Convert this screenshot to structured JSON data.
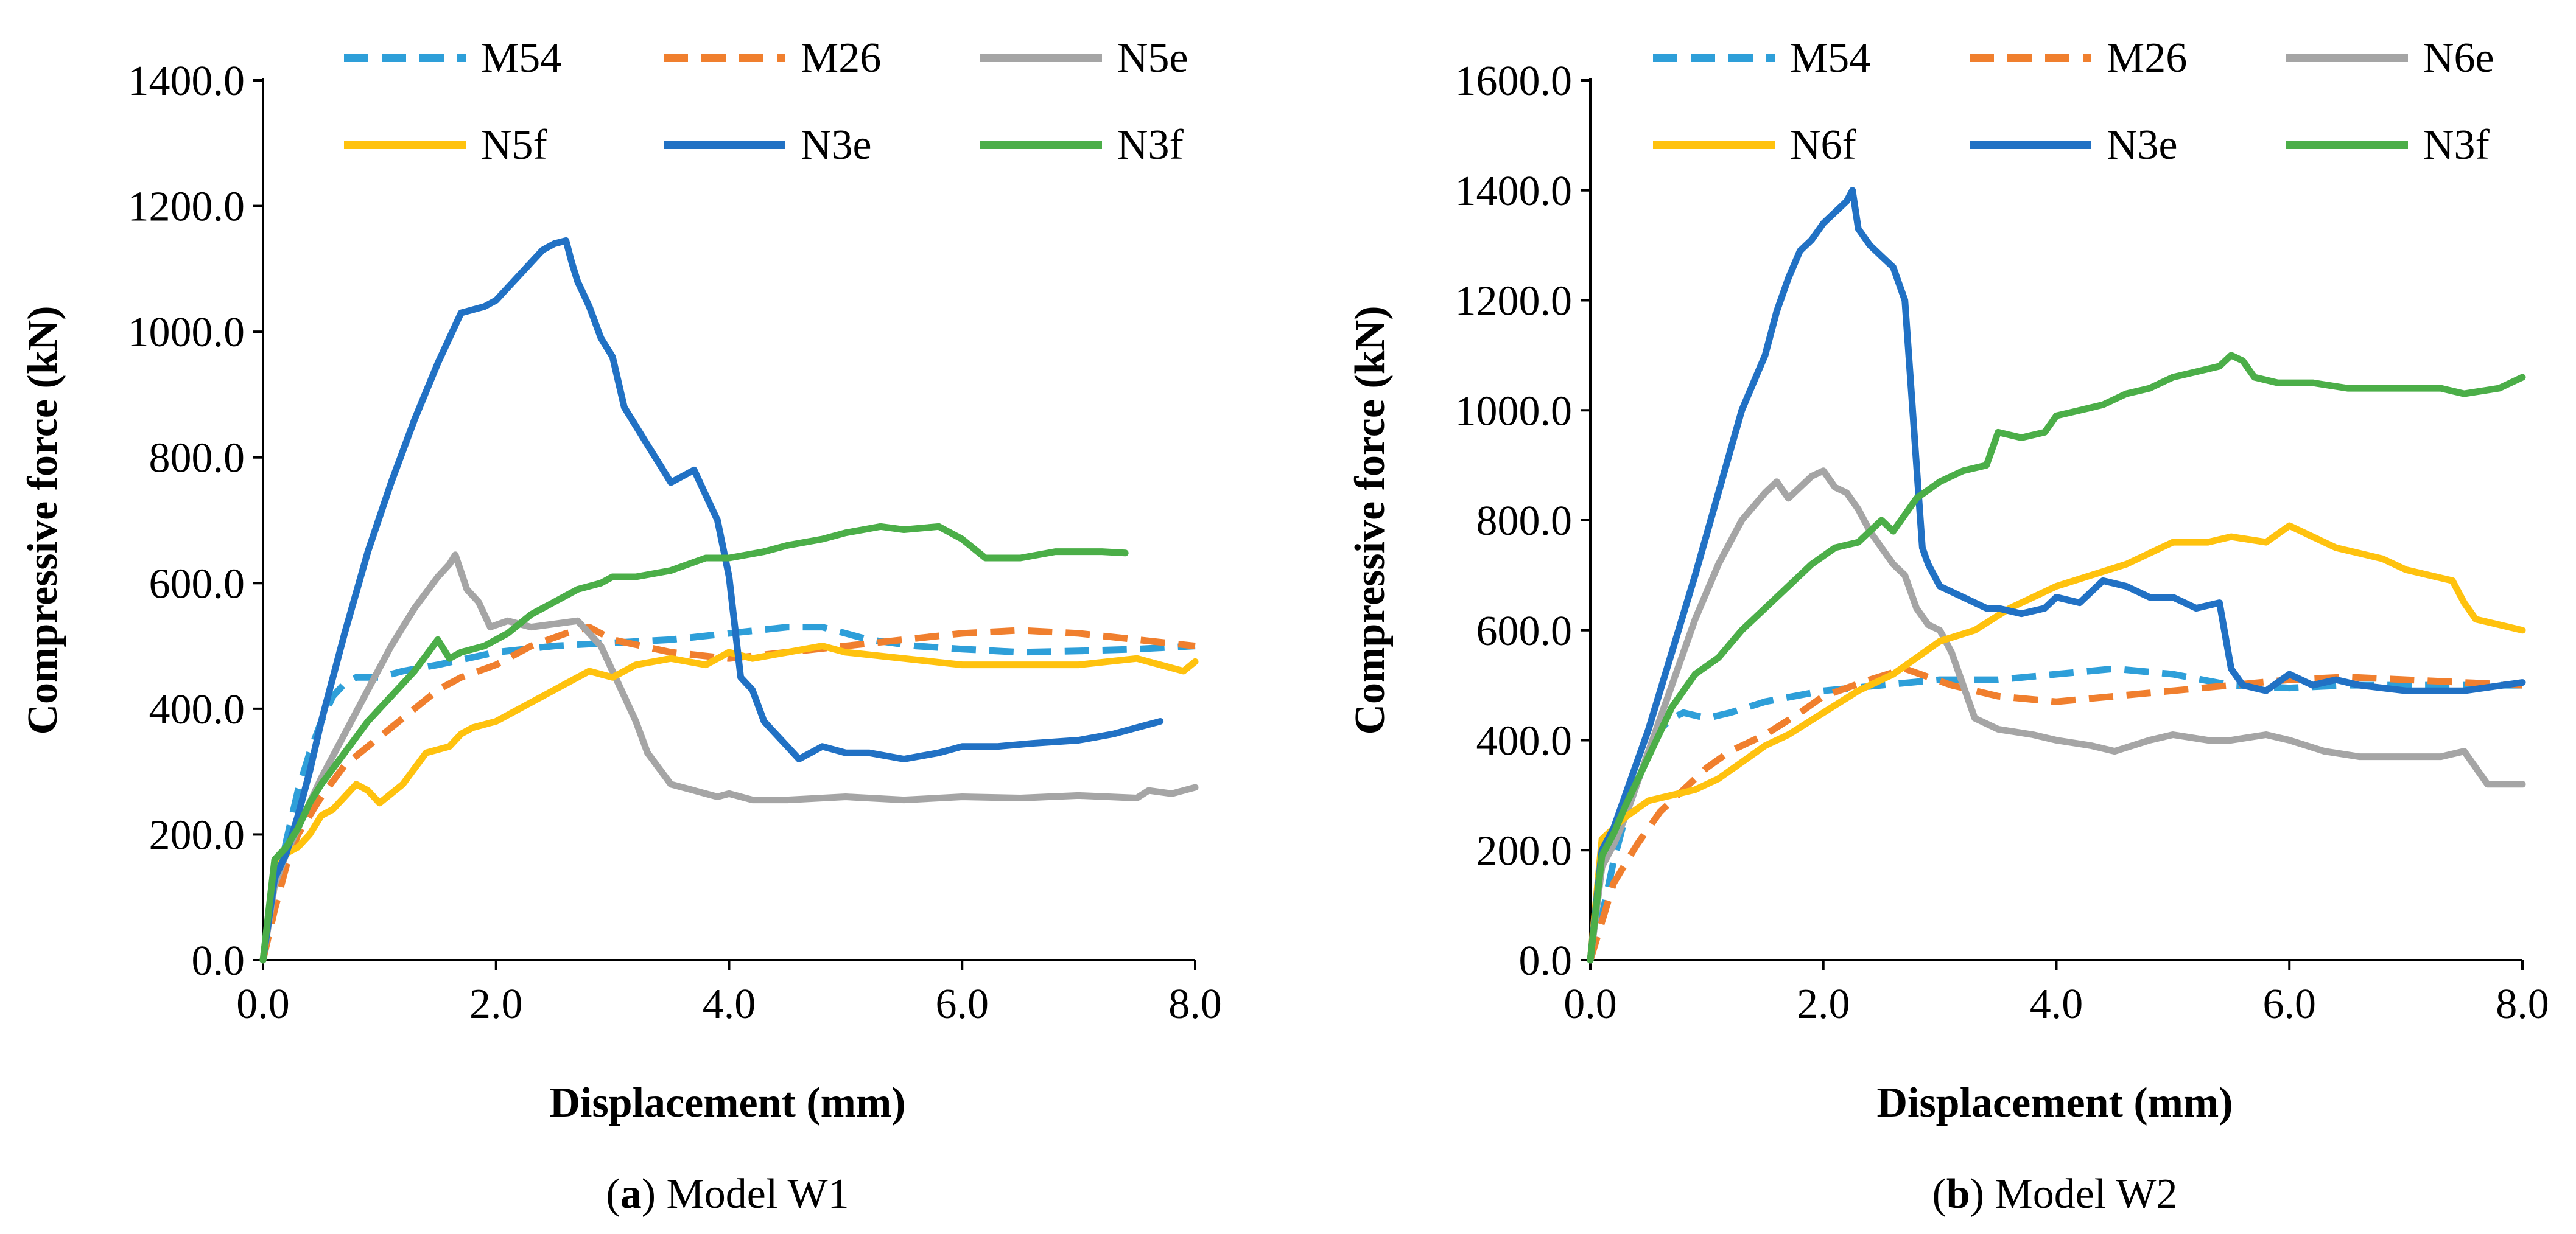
{
  "figure": {
    "panels": [
      {
        "caption": {
          "letter": "a",
          "text": ") Model W1"
        }
      },
      {
        "caption": {
          "letter": "b",
          "text": ") Model W2"
        }
      }
    ]
  },
  "colors": {
    "M54": "#2E9FD9",
    "M26": "#F07F2E",
    "N5e": "#A5A5A5",
    "N6e": "#A5A5A5",
    "N5f": "#FFC20E",
    "N6f": "#FFC20E",
    "N3e": "#2171C4",
    "N3f": "#4BAE48"
  },
  "chart_data": [
    {
      "type": "line",
      "title": "Model W1",
      "xlabel": "Displacement (mm)",
      "ylabel": "Compressive force (kN)",
      "xlim": [
        0,
        8
      ],
      "ylim": [
        0,
        1400
      ],
      "xticks": [
        "0.0",
        "2.0",
        "4.0",
        "6.0",
        "8.0"
      ],
      "yticks": [
        "0.0",
        "200.0",
        "400.0",
        "600.0",
        "800.0",
        "1000.0",
        "1200.0",
        "1400.0"
      ],
      "legend_position": "top",
      "series": [
        {
          "name": "M54",
          "dashed": true,
          "color": "#2E9FD9",
          "x": [
            0,
            0.1,
            0.2,
            0.3,
            0.4,
            0.5,
            0.6,
            0.7,
            0.8,
            1.0,
            1.2,
            1.5,
            2.0,
            2.5,
            3.0,
            3.5,
            4.0,
            4.5,
            4.8,
            5.2,
            5.6,
            6.0,
            6.5,
            7.0,
            7.5,
            8.0
          ],
          "y": [
            0,
            100,
            190,
            270,
            330,
            380,
            420,
            440,
            450,
            450,
            460,
            470,
            490,
            500,
            505,
            510,
            520,
            530,
            530,
            510,
            500,
            495,
            490,
            492,
            495,
            500
          ]
        },
        {
          "name": "M26",
          "dashed": true,
          "color": "#F07F2E",
          "x": [
            0,
            0.1,
            0.2,
            0.3,
            0.5,
            0.7,
            0.9,
            1.1,
            1.3,
            1.5,
            1.7,
            2.0,
            2.3,
            2.6,
            2.8,
            3.0,
            3.5,
            4.0,
            4.5,
            5.0,
            5.5,
            6.0,
            6.5,
            7.0,
            7.5,
            8.0
          ],
          "y": [
            0,
            80,
            150,
            200,
            260,
            310,
            340,
            370,
            400,
            430,
            450,
            470,
            500,
            520,
            530,
            510,
            490,
            480,
            490,
            500,
            510,
            520,
            525,
            520,
            510,
            500
          ]
        },
        {
          "name": "N5e",
          "dashed": false,
          "color": "#A5A5A5",
          "x": [
            0,
            0.1,
            0.2,
            0.3,
            0.5,
            0.7,
            0.9,
            1.1,
            1.3,
            1.5,
            1.6,
            1.65,
            1.75,
            1.85,
            1.95,
            2.1,
            2.3,
            2.5,
            2.7,
            2.9,
            3.0,
            3.1,
            3.2,
            3.3,
            3.5,
            3.7,
            3.9,
            4.0,
            4.2,
            4.5,
            5.0,
            5.5,
            6.0,
            6.5,
            7.0,
            7.5,
            7.6,
            7.8,
            8.0
          ],
          "y": [
            0,
            120,
            170,
            210,
            290,
            360,
            430,
            500,
            560,
            610,
            630,
            645,
            590,
            570,
            530,
            540,
            530,
            535,
            540,
            500,
            460,
            420,
            380,
            330,
            280,
            270,
            260,
            265,
            255,
            255,
            260,
            255,
            260,
            258,
            262,
            258,
            270,
            265,
            275
          ]
        },
        {
          "name": "N5f",
          "dashed": false,
          "color": "#FFC20E",
          "x": [
            0,
            0.1,
            0.2,
            0.3,
            0.4,
            0.5,
            0.6,
            0.7,
            0.8,
            0.9,
            1.0,
            1.2,
            1.4,
            1.6,
            1.7,
            1.8,
            2.0,
            2.2,
            2.4,
            2.6,
            2.8,
            3.0,
            3.2,
            3.5,
            3.8,
            4.0,
            4.2,
            4.5,
            4.8,
            5.0,
            5.5,
            6.0,
            6.5,
            7.0,
            7.5,
            7.7,
            7.9,
            8.0
          ],
          "y": [
            0,
            140,
            170,
            180,
            200,
            230,
            240,
            260,
            280,
            270,
            250,
            280,
            330,
            340,
            360,
            370,
            380,
            400,
            420,
            440,
            460,
            450,
            470,
            480,
            470,
            490,
            480,
            490,
            500,
            490,
            480,
            470,
            470,
            470,
            480,
            470,
            460,
            475
          ]
        },
        {
          "name": "N3e",
          "dashed": false,
          "color": "#2171C4",
          "x": [
            0,
            0.1,
            0.2,
            0.3,
            0.4,
            0.5,
            0.7,
            0.9,
            1.1,
            1.3,
            1.5,
            1.7,
            1.9,
            2.0,
            2.1,
            2.2,
            2.3,
            2.4,
            2.5,
            2.6,
            2.65,
            2.7,
            2.8,
            2.9,
            3.0,
            3.1,
            3.2,
            3.3,
            3.4,
            3.5,
            3.6,
            3.7,
            3.8,
            3.9,
            4.0,
            4.1,
            4.2,
            4.3,
            4.4,
            4.5,
            4.6,
            4.7,
            4.8,
            5.0,
            5.2,
            5.5,
            5.8,
            6.0,
            6.3,
            6.6,
            7.0,
            7.3,
            7.5,
            7.7
          ],
          "y": [
            0,
            130,
            170,
            230,
            300,
            380,
            520,
            650,
            760,
            860,
            950,
            1030,
            1040,
            1050,
            1070,
            1090,
            1110,
            1130,
            1140,
            1145,
            1110,
            1080,
            1040,
            990,
            960,
            880,
            850,
            820,
            790,
            760,
            770,
            780,
            740,
            700,
            610,
            450,
            430,
            380,
            360,
            340,
            320,
            330,
            340,
            330,
            330,
            320,
            330,
            340,
            340,
            345,
            350,
            360,
            370,
            380
          ]
        },
        {
          "name": "N3f",
          "dashed": false,
          "color": "#4BAE48",
          "x": [
            0,
            0.1,
            0.2,
            0.3,
            0.4,
            0.5,
            0.7,
            0.9,
            1.1,
            1.3,
            1.5,
            1.6,
            1.7,
            1.9,
            2.1,
            2.3,
            2.5,
            2.7,
            2.9,
            3.0,
            3.2,
            3.5,
            3.8,
            4.0,
            4.3,
            4.5,
            4.8,
            5.0,
            5.3,
            5.5,
            5.8,
            6.0,
            6.2,
            6.5,
            6.8,
            7.0,
            7.2,
            7.4
          ],
          "y": [
            0,
            160,
            180,
            210,
            250,
            280,
            330,
            380,
            420,
            460,
            510,
            480,
            490,
            500,
            520,
            550,
            570,
            590,
            600,
            610,
            610,
            620,
            640,
            640,
            650,
            660,
            670,
            680,
            690,
            685,
            690,
            670,
            640,
            640,
            650,
            650,
            650,
            648
          ]
        }
      ]
    },
    {
      "type": "line",
      "title": "Model W2",
      "xlabel": "Displacement (mm)",
      "ylabel": "Compressive force (kN)",
      "xlim": [
        0,
        8
      ],
      "ylim": [
        0,
        1600
      ],
      "xticks": [
        "0.0",
        "2.0",
        "4.0",
        "6.0",
        "8.0"
      ],
      "yticks": [
        "0.0",
        "200.0",
        "400.0",
        "600.0",
        "800.0",
        "1000.0",
        "1200.0",
        "1400.0",
        "1600.0"
      ],
      "legend_position": "top",
      "series": [
        {
          "name": "M54",
          "dashed": true,
          "color": "#2E9FD9",
          "x": [
            0,
            0.1,
            0.2,
            0.3,
            0.4,
            0.5,
            0.6,
            0.7,
            0.8,
            1.0,
            1.2,
            1.5,
            2.0,
            2.5,
            3.0,
            3.5,
            4.0,
            4.5,
            5.0,
            5.5,
            6.0,
            6.5,
            7.0,
            7.5,
            8.0
          ],
          "y": [
            0,
            80,
            180,
            260,
            320,
            380,
            420,
            440,
            450,
            440,
            450,
            470,
            490,
            500,
            510,
            510,
            520,
            530,
            520,
            500,
            495,
            500,
            500,
            500,
            500
          ]
        },
        {
          "name": "M26",
          "dashed": true,
          "color": "#F07F2E",
          "x": [
            0,
            0.1,
            0.2,
            0.4,
            0.6,
            0.8,
            1.0,
            1.2,
            1.5,
            1.8,
            2.0,
            2.4,
            2.7,
            2.9,
            3.1,
            3.5,
            4.0,
            4.5,
            5.0,
            5.5,
            6.0,
            6.5,
            7.0,
            7.5,
            8.0
          ],
          "y": [
            0,
            70,
            140,
            210,
            270,
            310,
            350,
            380,
            410,
            450,
            480,
            510,
            530,
            515,
            500,
            480,
            470,
            480,
            490,
            500,
            510,
            515,
            510,
            505,
            500
          ]
        },
        {
          "name": "N6e",
          "dashed": false,
          "color": "#A5A5A5",
          "x": [
            0,
            0.1,
            0.2,
            0.3,
            0.5,
            0.7,
            0.9,
            1.1,
            1.3,
            1.5,
            1.6,
            1.7,
            1.8,
            1.9,
            2.0,
            2.1,
            2.2,
            2.3,
            2.4,
            2.5,
            2.6,
            2.7,
            2.8,
            2.9,
            3.0,
            3.1,
            3.2,
            3.3,
            3.5,
            3.8,
            4.0,
            4.3,
            4.5,
            4.8,
            5.0,
            5.3,
            5.5,
            5.8,
            6.0,
            6.3,
            6.6,
            7.0,
            7.3,
            7.5,
            7.7,
            8.0
          ],
          "y": [
            0,
            170,
            210,
            260,
            380,
            500,
            620,
            720,
            800,
            850,
            870,
            840,
            860,
            880,
            890,
            860,
            850,
            820,
            780,
            750,
            720,
            700,
            640,
            610,
            600,
            560,
            500,
            440,
            420,
            410,
            400,
            390,
            380,
            400,
            410,
            400,
            400,
            410,
            400,
            380,
            370,
            370,
            370,
            380,
            320,
            320
          ]
        },
        {
          "name": "N6f",
          "dashed": false,
          "color": "#FFC20E",
          "x": [
            0,
            0.1,
            0.2,
            0.3,
            0.5,
            0.7,
            0.9,
            1.1,
            1.3,
            1.5,
            1.7,
            2.0,
            2.3,
            2.6,
            3.0,
            3.3,
            3.6,
            4.0,
            4.3,
            4.6,
            4.8,
            5.0,
            5.3,
            5.5,
            5.8,
            6.0,
            6.2,
            6.4,
            6.6,
            6.8,
            7.0,
            7.2,
            7.4,
            7.5,
            7.6,
            7.8,
            8.0
          ],
          "y": [
            0,
            220,
            240,
            260,
            290,
            300,
            310,
            330,
            360,
            390,
            410,
            450,
            490,
            520,
            580,
            600,
            640,
            680,
            700,
            720,
            740,
            760,
            760,
            770,
            760,
            790,
            770,
            750,
            740,
            730,
            710,
            700,
            690,
            650,
            620,
            610,
            600
          ]
        },
        {
          "name": "N3e",
          "dashed": false,
          "color": "#2171C4",
          "x": [
            0,
            0.1,
            0.2,
            0.3,
            0.5,
            0.7,
            0.9,
            1.1,
            1.3,
            1.4,
            1.5,
            1.6,
            1.7,
            1.8,
            1.9,
            2.0,
            2.1,
            2.2,
            2.25,
            2.3,
            2.4,
            2.5,
            2.6,
            2.7,
            2.75,
            2.8,
            2.85,
            2.9,
            3.0,
            3.2,
            3.4,
            3.5,
            3.7,
            3.9,
            4.0,
            4.2,
            4.4,
            4.6,
            4.8,
            5.0,
            5.2,
            5.4,
            5.5,
            5.6,
            5.8,
            6.0,
            6.2,
            6.4,
            6.6,
            7.0,
            7.5,
            8.0
          ],
          "y": [
            0,
            200,
            240,
            300,
            420,
            560,
            700,
            850,
            1000,
            1050,
            1100,
            1180,
            1240,
            1290,
            1310,
            1340,
            1360,
            1380,
            1400,
            1330,
            1300,
            1280,
            1260,
            1200,
            1050,
            900,
            750,
            720,
            680,
            660,
            640,
            640,
            630,
            640,
            660,
            650,
            690,
            680,
            660,
            660,
            640,
            650,
            530,
            500,
            490,
            520,
            500,
            510,
            500,
            490,
            490,
            505
          ]
        },
        {
          "name": "N3f",
          "dashed": false,
          "color": "#4BAE48",
          "x": [
            0,
            0.1,
            0.2,
            0.3,
            0.5,
            0.7,
            0.9,
            1.1,
            1.3,
            1.5,
            1.7,
            1.9,
            2.1,
            2.3,
            2.5,
            2.6,
            2.8,
            3.0,
            3.2,
            3.4,
            3.5,
            3.7,
            3.9,
            4.0,
            4.2,
            4.4,
            4.6,
            4.8,
            5.0,
            5.2,
            5.4,
            5.5,
            5.6,
            5.7,
            5.9,
            6.2,
            6.5,
            6.8,
            7.0,
            7.3,
            7.5,
            7.8,
            8.0
          ],
          "y": [
            0,
            190,
            230,
            280,
            370,
            460,
            520,
            550,
            600,
            640,
            680,
            720,
            750,
            760,
            800,
            780,
            840,
            870,
            890,
            900,
            960,
            950,
            960,
            990,
            1000,
            1010,
            1030,
            1040,
            1060,
            1070,
            1080,
            1100,
            1090,
            1060,
            1050,
            1050,
            1040,
            1040,
            1040,
            1040,
            1030,
            1040,
            1060
          ]
        }
      ]
    }
  ]
}
